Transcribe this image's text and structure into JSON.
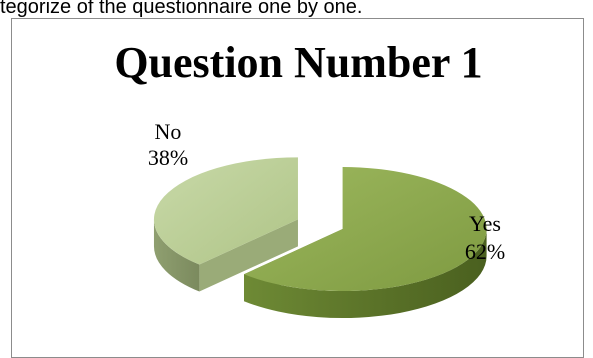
{
  "page": {
    "text_line": "tegorize of the questionnaire one by one."
  },
  "chart_data": {
    "type": "pie",
    "title": "Question Number 1",
    "slices": [
      {
        "label": "Yes",
        "value": 62,
        "value_label": "62%",
        "color": "#8ba84c"
      },
      {
        "label": "No",
        "value": 38,
        "value_label": "38%",
        "color": "#b8cc93"
      }
    ],
    "three_d": true,
    "exploded": true
  }
}
